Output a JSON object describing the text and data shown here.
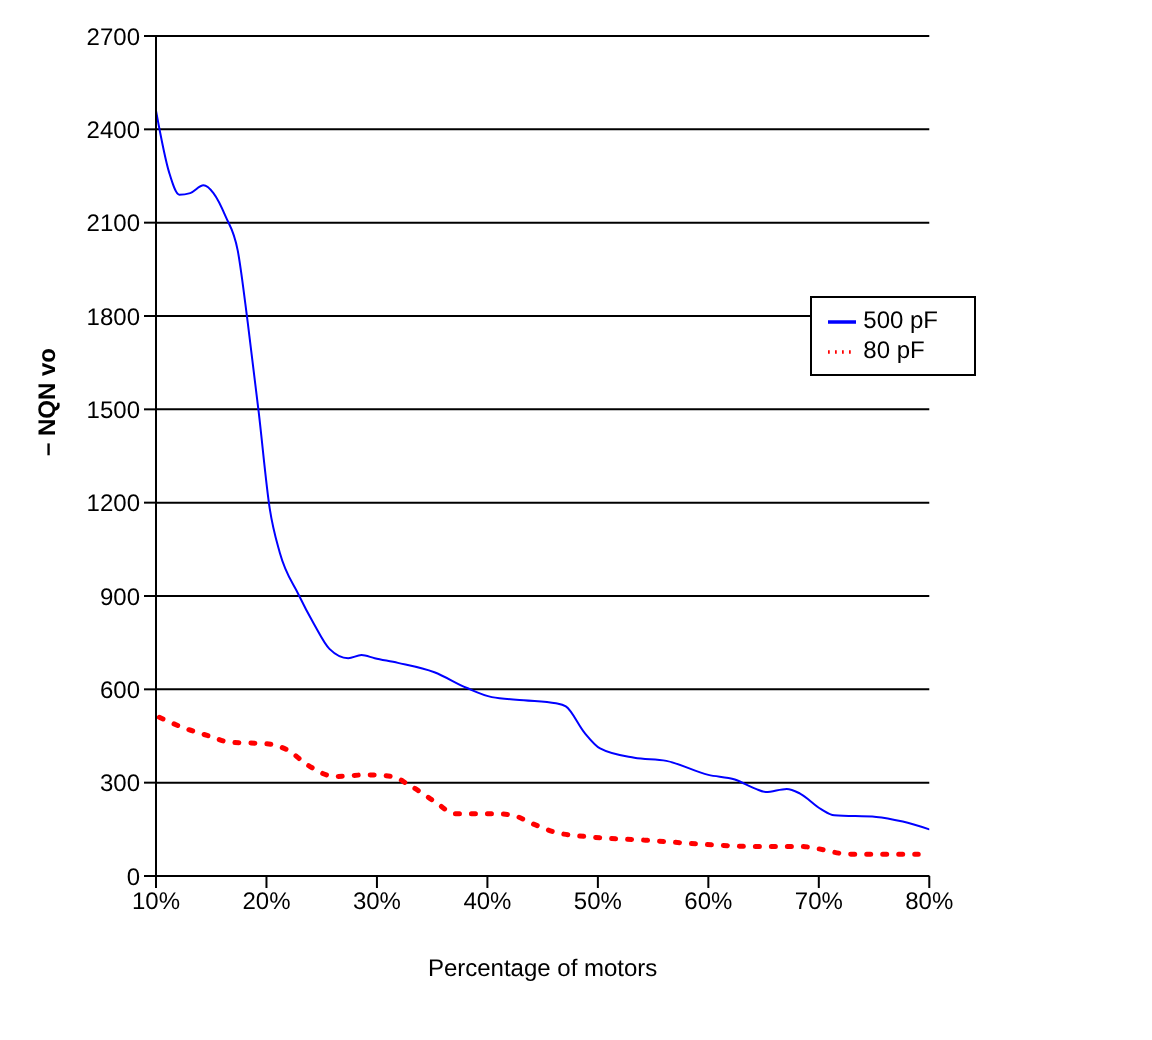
{
  "chart_data": {
    "type": "line",
    "xlabel": "Percentage of motors",
    "ylabel": "– NQN vo",
    "xlim": [
      10,
      80
    ],
    "xticks": [
      {
        "value": 10,
        "label": "10%"
      },
      {
        "value": 20,
        "label": "20%"
      },
      {
        "value": 30,
        "label": "30%"
      },
      {
        "value": 40,
        "label": "40%"
      },
      {
        "value": 50,
        "label": "50%"
      },
      {
        "value": 60,
        "label": "60%"
      },
      {
        "value": 70,
        "label": "70%"
      },
      {
        "value": 80,
        "label": "80%"
      }
    ],
    "ylim": [
      0,
      2700
    ],
    "yticks": [
      0,
      300,
      600,
      900,
      1200,
      1500,
      1800,
      2100,
      2400,
      2700
    ],
    "grid": "y",
    "legend": "right",
    "marker": "none",
    "series": [
      {
        "name": "500 pF",
        "color": "#0000ff",
        "line_style": "solid",
        "x": [
          10,
          11.2,
          12.1,
          13.1,
          14.3,
          15.2,
          16.3,
          17.4,
          18.3,
          19.3,
          20.3,
          21.2,
          22.9,
          24.3,
          25.7,
          27.4,
          28.6,
          29.8,
          31.9,
          35.2,
          38.1,
          40.4,
          43.3,
          46.2,
          47.1,
          48.8,
          50.2,
          53.3,
          56.2,
          60,
          62.4,
          64.3,
          65.2,
          67.1,
          68.3,
          70.2,
          71.4,
          75.2,
          77.6,
          80
        ],
        "values": [
          2460,
          2260,
          2190,
          2195,
          2220,
          2195,
          2120,
          2010,
          1780,
          1490,
          1180,
          1040,
          905,
          810,
          730,
          700,
          710,
          700,
          685,
          655,
          605,
          575,
          565,
          555,
          545,
          460,
          410,
          380,
          370,
          325,
          310,
          280,
          270,
          280,
          265,
          215,
          195,
          190,
          175,
          150
        ]
      },
      {
        "name": "80 pF",
        "color": "#ff0000",
        "line_style": "dotted",
        "x": [
          10.3,
          12.6,
          14.8,
          16.7,
          20,
          21.9,
          23.8,
          26.2,
          29,
          31.4,
          32.8,
          35.2,
          37.1,
          40.9,
          42.3,
          44.3,
          46.2,
          49.5,
          54.3,
          60.5,
          63.8,
          68.3,
          72.9,
          75.7,
          79
        ],
        "values": [
          510,
          475,
          450,
          430,
          425,
          405,
          355,
          320,
          325,
          320,
          295,
          240,
          200,
          200,
          195,
          165,
          140,
          125,
          115,
          100,
          95,
          95,
          70,
          70,
          70
        ]
      }
    ]
  }
}
